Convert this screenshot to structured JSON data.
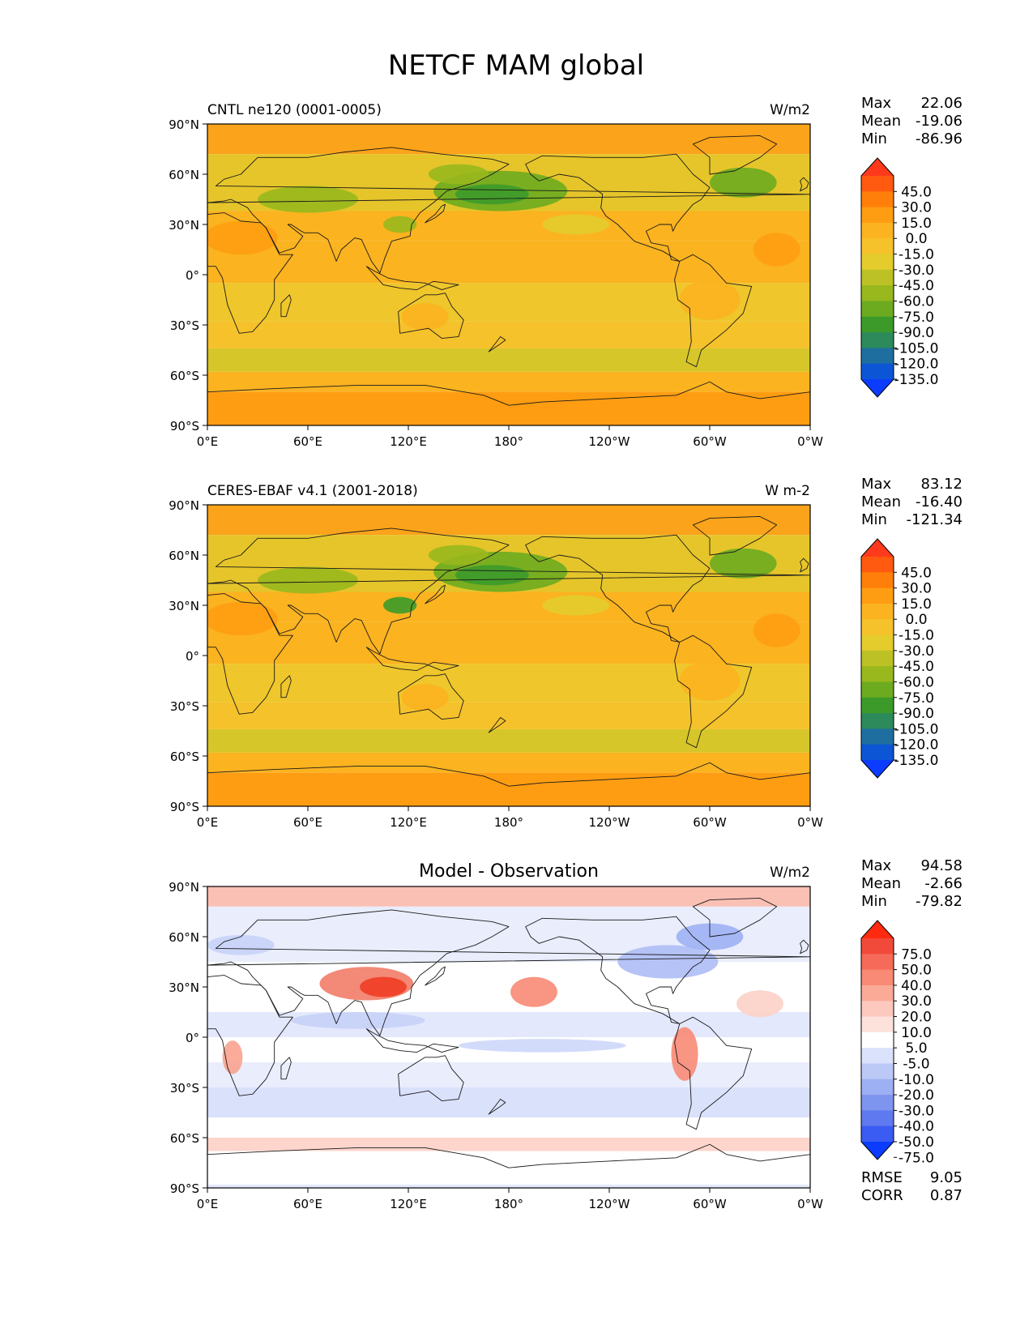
{
  "figure": {
    "title": "NETCF MAM global"
  },
  "axis_labels": {
    "lat": [
      "90°N",
      "60°N",
      "30°N",
      "0°",
      "30°S",
      "60°S",
      "90°S"
    ],
    "lon": [
      "0°E",
      "60°E",
      "120°E",
      "180°",
      "120°W",
      "60°W",
      "0°W"
    ]
  },
  "panels": [
    {
      "id": "test",
      "left_title": "CNTL ne120 (0001-0005)",
      "center_title": "",
      "units": "W/m2",
      "stats": [
        {
          "label": "Max",
          "value": "22.06"
        },
        {
          "label": "Mean",
          "value": "-19.06"
        },
        {
          "label": "Min",
          "value": "-86.96"
        }
      ],
      "colorbar": {
        "ticks": [
          "45.0",
          "30.0",
          "15.0",
          "0.0",
          "-15.0",
          "-30.0",
          "-45.0",
          "-60.0",
          "-75.0",
          "-90.0",
          "-105.0",
          "-120.0",
          "-135.0"
        ],
        "colors": [
          "#ff3a1c",
          "#ff5a0f",
          "#ff7f0a",
          "#ff9d12",
          "#fbb320",
          "#f5c22c",
          "#e3cc2c",
          "#bcc226",
          "#98b81d",
          "#6cab1f",
          "#3c9a2a",
          "#2d8a5a",
          "#1e6fa0",
          "#0c56d6",
          "#0b3cff"
        ]
      },
      "field": {
        "range": "-86.96 to 22.06 W/m2",
        "features": [
          "negative cloud forcing bands in mid-latitude storm tracks (~30-60°N/S)",
          "strong negative region over North Pacific and North Atlantic",
          "near-zero to positive values over Antarctica and subtropical deserts"
        ]
      }
    },
    {
      "id": "reference",
      "left_title": "CERES-EBAF v4.1 (2001-2018)",
      "center_title": "",
      "units": "W m-2",
      "stats": [
        {
          "label": "Max",
          "value": "83.12"
        },
        {
          "label": "Mean",
          "value": "-16.40"
        },
        {
          "label": "Min",
          "value": "-121.34"
        }
      ],
      "colorbar": {
        "ticks": [
          "45.0",
          "30.0",
          "15.0",
          "0.0",
          "-15.0",
          "-30.0",
          "-45.0",
          "-60.0",
          "-75.0",
          "-90.0",
          "-105.0",
          "-120.0",
          "-135.0"
        ],
        "colors": [
          "#ff3a1c",
          "#ff5a0f",
          "#ff7f0a",
          "#ff9d12",
          "#fbb320",
          "#f5c22c",
          "#e3cc2c",
          "#bcc226",
          "#98b81d",
          "#6cab1f",
          "#3c9a2a",
          "#2d8a5a",
          "#1e6fa0",
          "#0c56d6",
          "#0b3cff"
        ]
      },
      "field": {
        "range": "-121.34 to 83.12 W m-2",
        "features": [
          "strong negative forcing over East Asia / western North Pacific",
          "positive forcing over Sahara / Arabia",
          "negative bands along storm tracks"
        ]
      }
    },
    {
      "id": "diff",
      "left_title": "",
      "center_title": "Model - Observation",
      "units": "W/m2",
      "stats": [
        {
          "label": "Max",
          "value": "94.58"
        },
        {
          "label": "Mean",
          "value": "-2.66"
        },
        {
          "label": "Min",
          "value": "-79.82"
        }
      ],
      "extra_stats": [
        {
          "label": "RMSE",
          "value": "9.05"
        },
        {
          "label": "CORR",
          "value": "0.87"
        }
      ],
      "colorbar": {
        "ticks": [
          "75.0",
          "50.0",
          "40.0",
          "30.0",
          "20.0",
          "10.0",
          "5.0",
          "-5.0",
          "-10.0",
          "-20.0",
          "-30.0",
          "-40.0",
          "-50.0",
          "-75.0"
        ],
        "colors": [
          "#ff2a10",
          "#f24a3a",
          "#f56a58",
          "#f88a76",
          "#fbaa98",
          "#fdc8bd",
          "#fde2dc",
          "#ffffff",
          "#dbe2fb",
          "#bcc9f7",
          "#9db0f3",
          "#7e95ef",
          "#5f7af0",
          "#3a5cf3",
          "#0b3cff"
        ]
      },
      "field": {
        "range": "-79.82 to 94.58 W/m2",
        "features": [
          "positive (red) bias over Tibetan Plateau / East Asia",
          "positive bias off west coast of South America and Africa",
          "pink positive band over Arctic and Southern Ocean",
          "widespread weak negative (blue) bias over oceans"
        ]
      }
    }
  ]
}
